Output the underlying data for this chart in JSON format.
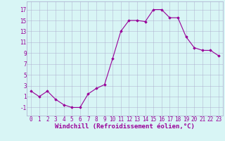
{
  "x": [
    0,
    1,
    2,
    3,
    4,
    5,
    6,
    7,
    8,
    9,
    10,
    11,
    12,
    13,
    14,
    15,
    16,
    17,
    18,
    19,
    20,
    21,
    22,
    23
  ],
  "y": [
    2,
    1,
    2,
    0.5,
    -0.5,
    -1,
    -1,
    1.5,
    2.5,
    3.2,
    8,
    13,
    15,
    15,
    14.8,
    17,
    17,
    15.5,
    15.5,
    12,
    10,
    9.5,
    9.5,
    8.5
  ],
  "line_color": "#990099",
  "marker": "D",
  "marker_size": 1.8,
  "bg_color": "#d8f5f5",
  "grid_color": "#aaaacc",
  "xlabel": "Windchill (Refroidissement éolien,°C)",
  "xlabel_color": "#990099",
  "ytick_labels": [
    "17",
    "15",
    "13",
    "11",
    "9",
    "7",
    "5",
    "3",
    "1",
    "-1"
  ],
  "ytick_values": [
    17,
    15,
    13,
    11,
    9,
    7,
    5,
    3,
    1,
    -1
  ],
  "ylim": [
    -2.5,
    18.5
  ],
  "xlim": [
    -0.5,
    23.5
  ],
  "tick_labelsize": 5.5,
  "xlabel_fontsize": 6.5,
  "linewidth": 0.8
}
